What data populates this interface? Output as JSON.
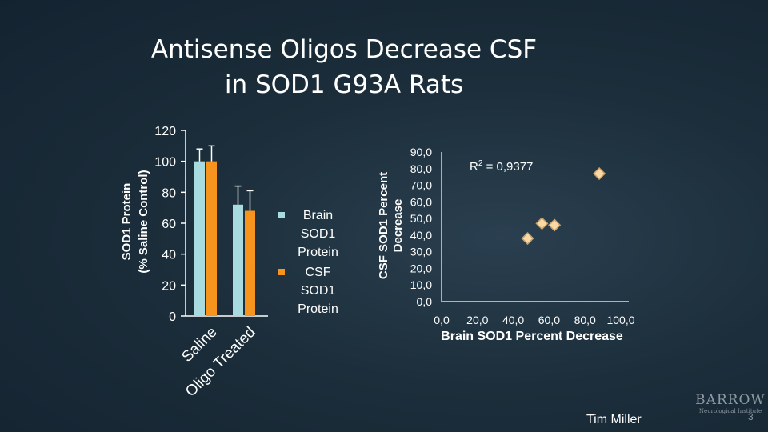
{
  "title_line1": "Antisense Oligos Decrease CSF",
  "title_line2": "in SOD1 G93A Rats",
  "author": "Tim Miller",
  "slide_number": "3",
  "logo": {
    "main": "BARROW",
    "sub": "Neurological Institute"
  },
  "colors": {
    "brain": "#a8dbe0",
    "csf": "#f7941d",
    "point_fill": "#fad9a4",
    "point_stroke": "#c8a06b",
    "axis": "#ffffff",
    "background": "#1c2e3b"
  },
  "chart_data": [
    {
      "type": "bar",
      "ylabel_line1": "SOD1 Protein",
      "ylabel_line2": "(% Saline Control)",
      "ylim": [
        0,
        120
      ],
      "yticks": [
        "0",
        "20",
        "40",
        "60",
        "80",
        "100",
        "120"
      ],
      "categories": [
        "Saline",
        "Oligo Treated"
      ],
      "series": [
        {
          "name": "Brain SOD1 Protein",
          "values": [
            100,
            72
          ],
          "errors": [
            8,
            12
          ]
        },
        {
          "name": "CSF SOD1 Protein",
          "values": [
            100,
            68
          ],
          "errors": [
            10,
            13
          ]
        }
      ],
      "legend": [
        "Brain SOD1 Protein",
        "CSF SOD1 Protein"
      ],
      "legend_position": "right",
      "grid": false
    },
    {
      "type": "scatter",
      "xlabel": "Brain SOD1 Percent Decrease",
      "ylabel_line1": "CSF SOD1 Percent",
      "ylabel_line2": "Decrease",
      "xlim": [
        0,
        100
      ],
      "ylim": [
        0,
        90
      ],
      "xticks": [
        "0,0",
        "20,0",
        "40,0",
        "60,0",
        "80,0",
        "100,0"
      ],
      "yticks": [
        "0,0",
        "10,0",
        "20,0",
        "30,0",
        "40,0",
        "50,0",
        "60,0",
        "70,0",
        "80,0",
        "90,0"
      ],
      "annotation": "R",
      "annotation_sup": "2",
      "annotation_rest": " = 0,9377",
      "points": [
        {
          "x": 48,
          "y": 38
        },
        {
          "x": 56,
          "y": 47
        },
        {
          "x": 63,
          "y": 46
        },
        {
          "x": 88,
          "y": 77
        }
      ],
      "grid": false
    }
  ]
}
